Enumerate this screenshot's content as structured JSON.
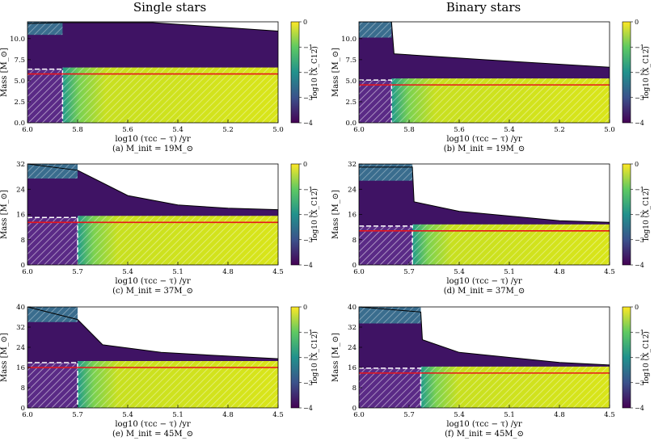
{
  "figure": {
    "column_titles": [
      "Single stars",
      "Binary stars"
    ],
    "colorbar": {
      "label": "log10 (X_C12)",
      "ticks": [
        "0",
        "−1",
        "−2",
        "−3",
        "−4"
      ],
      "range": [
        -4,
        0
      ],
      "colormap": "viridis"
    },
    "colors": {
      "red_line": "#e8141b",
      "envelope_blue": "#3a6d8e",
      "core_dark": "#3f1364",
      "core_yellow": "#d2e21b"
    }
  },
  "chart_data": [
    {
      "id": "a",
      "type": "heatmap",
      "caption": "(a) M_init = 19M_⊙",
      "xlabel": "log10 (τcc − τ) /yr",
      "ylabel": "Mass [M_⊙]",
      "xlim": [
        6.0,
        5.0
      ],
      "ylim": [
        0,
        12
      ],
      "xticks": [
        "6.0",
        "5.8",
        "5.6",
        "5.4",
        "5.2",
        "5.0"
      ],
      "yticks": [
        "0.0",
        "2.5",
        "5.0",
        "7.5",
        "10.0"
      ],
      "red_line_mass": 5.8,
      "surface_mass": [
        [
          6.0,
          11.8
        ],
        [
          5.86,
          11.9
        ],
        [
          5.5,
          11.9
        ],
        [
          5.2,
          11.3
        ],
        [
          5.0,
          10.9
        ]
      ]
    },
    {
      "id": "b",
      "type": "heatmap",
      "caption": "(b) M_init = 19M_⊙",
      "xlabel": "log10 (τcc − τ) /yr",
      "ylabel": "Mass [M_⊙]",
      "xlim": [
        6.0,
        5.0
      ],
      "ylim": [
        0,
        12
      ],
      "xticks": [
        "6.0",
        "5.8",
        "5.6",
        "5.4",
        "5.2",
        "5.0"
      ],
      "yticks": [
        "0.0",
        "2.5",
        "5.0",
        "7.5",
        "10.0"
      ],
      "red_line_mass": 4.5,
      "surface_mass": [
        [
          6.0,
          12.0
        ],
        [
          5.87,
          12.0
        ],
        [
          5.86,
          8.2
        ],
        [
          5.5,
          7.5
        ],
        [
          5.0,
          6.6
        ]
      ]
    },
    {
      "id": "c",
      "type": "heatmap",
      "caption": "(c) M_init = 37M_⊙",
      "xlabel": "log10 (τcc − τ) /yr",
      "ylabel": "Mass [M_⊙]",
      "xlim": [
        6.0,
        4.5
      ],
      "ylim": [
        0,
        32
      ],
      "xticks": [
        "6.0",
        "5.7",
        "5.4",
        "5.1",
        "4.8",
        "4.5"
      ],
      "yticks": [
        "0",
        "8",
        "16",
        "24",
        "32"
      ],
      "red_line_mass": 13.5,
      "surface_mass": [
        [
          6.0,
          32.0
        ],
        [
          5.7,
          30.0
        ],
        [
          5.4,
          22.0
        ],
        [
          5.1,
          19.0
        ],
        [
          4.8,
          18.0
        ],
        [
          4.5,
          17.5
        ]
      ]
    },
    {
      "id": "d",
      "type": "heatmap",
      "caption": "(d) M_init = 37M_⊙",
      "xlabel": "log10 (τcc − τ) /yr",
      "ylabel": "Mass [M_⊙]",
      "xlim": [
        6.0,
        4.5
      ],
      "ylim": [
        0,
        32
      ],
      "xticks": [
        "6.0",
        "5.7",
        "5.4",
        "5.1",
        "4.8",
        "4.5"
      ],
      "yticks": [
        "0",
        "8",
        "16",
        "24",
        "32"
      ],
      "red_line_mass": 10.8,
      "surface_mass": [
        [
          6.0,
          31.0
        ],
        [
          5.68,
          31.0
        ],
        [
          5.67,
          20.0
        ],
        [
          5.4,
          17.0
        ],
        [
          4.8,
          14.0
        ],
        [
          4.5,
          13.5
        ]
      ]
    },
    {
      "id": "e",
      "type": "heatmap",
      "caption": "(e) M_init = 45M_⊙",
      "xlabel": "log10 (τcc − τ) /yr",
      "ylabel": "Mass [M_⊙]",
      "xlim": [
        6.0,
        4.5
      ],
      "ylim": [
        0,
        40
      ],
      "xticks": [
        "6.0",
        "5.7",
        "5.4",
        "5.1",
        "4.8",
        "4.5"
      ],
      "yticks": [
        "0",
        "8",
        "16",
        "24",
        "32",
        "40"
      ],
      "red_line_mass": 16.0,
      "surface_mass": [
        [
          6.0,
          40.0
        ],
        [
          5.7,
          35.0
        ],
        [
          5.55,
          25.0
        ],
        [
          5.2,
          22.0
        ],
        [
          4.8,
          20.5
        ],
        [
          4.5,
          19.5
        ]
      ]
    },
    {
      "id": "f",
      "type": "heatmap",
      "caption": "(f) M_init = 45M_⊙",
      "xlabel": "log10 (τcc − τ) /yr",
      "ylabel": "Mass [M_⊙]",
      "xlim": [
        6.0,
        4.5
      ],
      "ylim": [
        0,
        40
      ],
      "xticks": [
        "6.0",
        "5.7",
        "5.4",
        "5.1",
        "4.8",
        "4.5"
      ],
      "yticks": [
        "0",
        "8",
        "16",
        "24",
        "32",
        "40"
      ],
      "red_line_mass": 13.8,
      "surface_mass": [
        [
          6.0,
          40.0
        ],
        [
          5.63,
          38.0
        ],
        [
          5.62,
          27.0
        ],
        [
          5.4,
          22.0
        ],
        [
          4.8,
          18.0
        ],
        [
          4.5,
          17.0
        ]
      ]
    }
  ]
}
